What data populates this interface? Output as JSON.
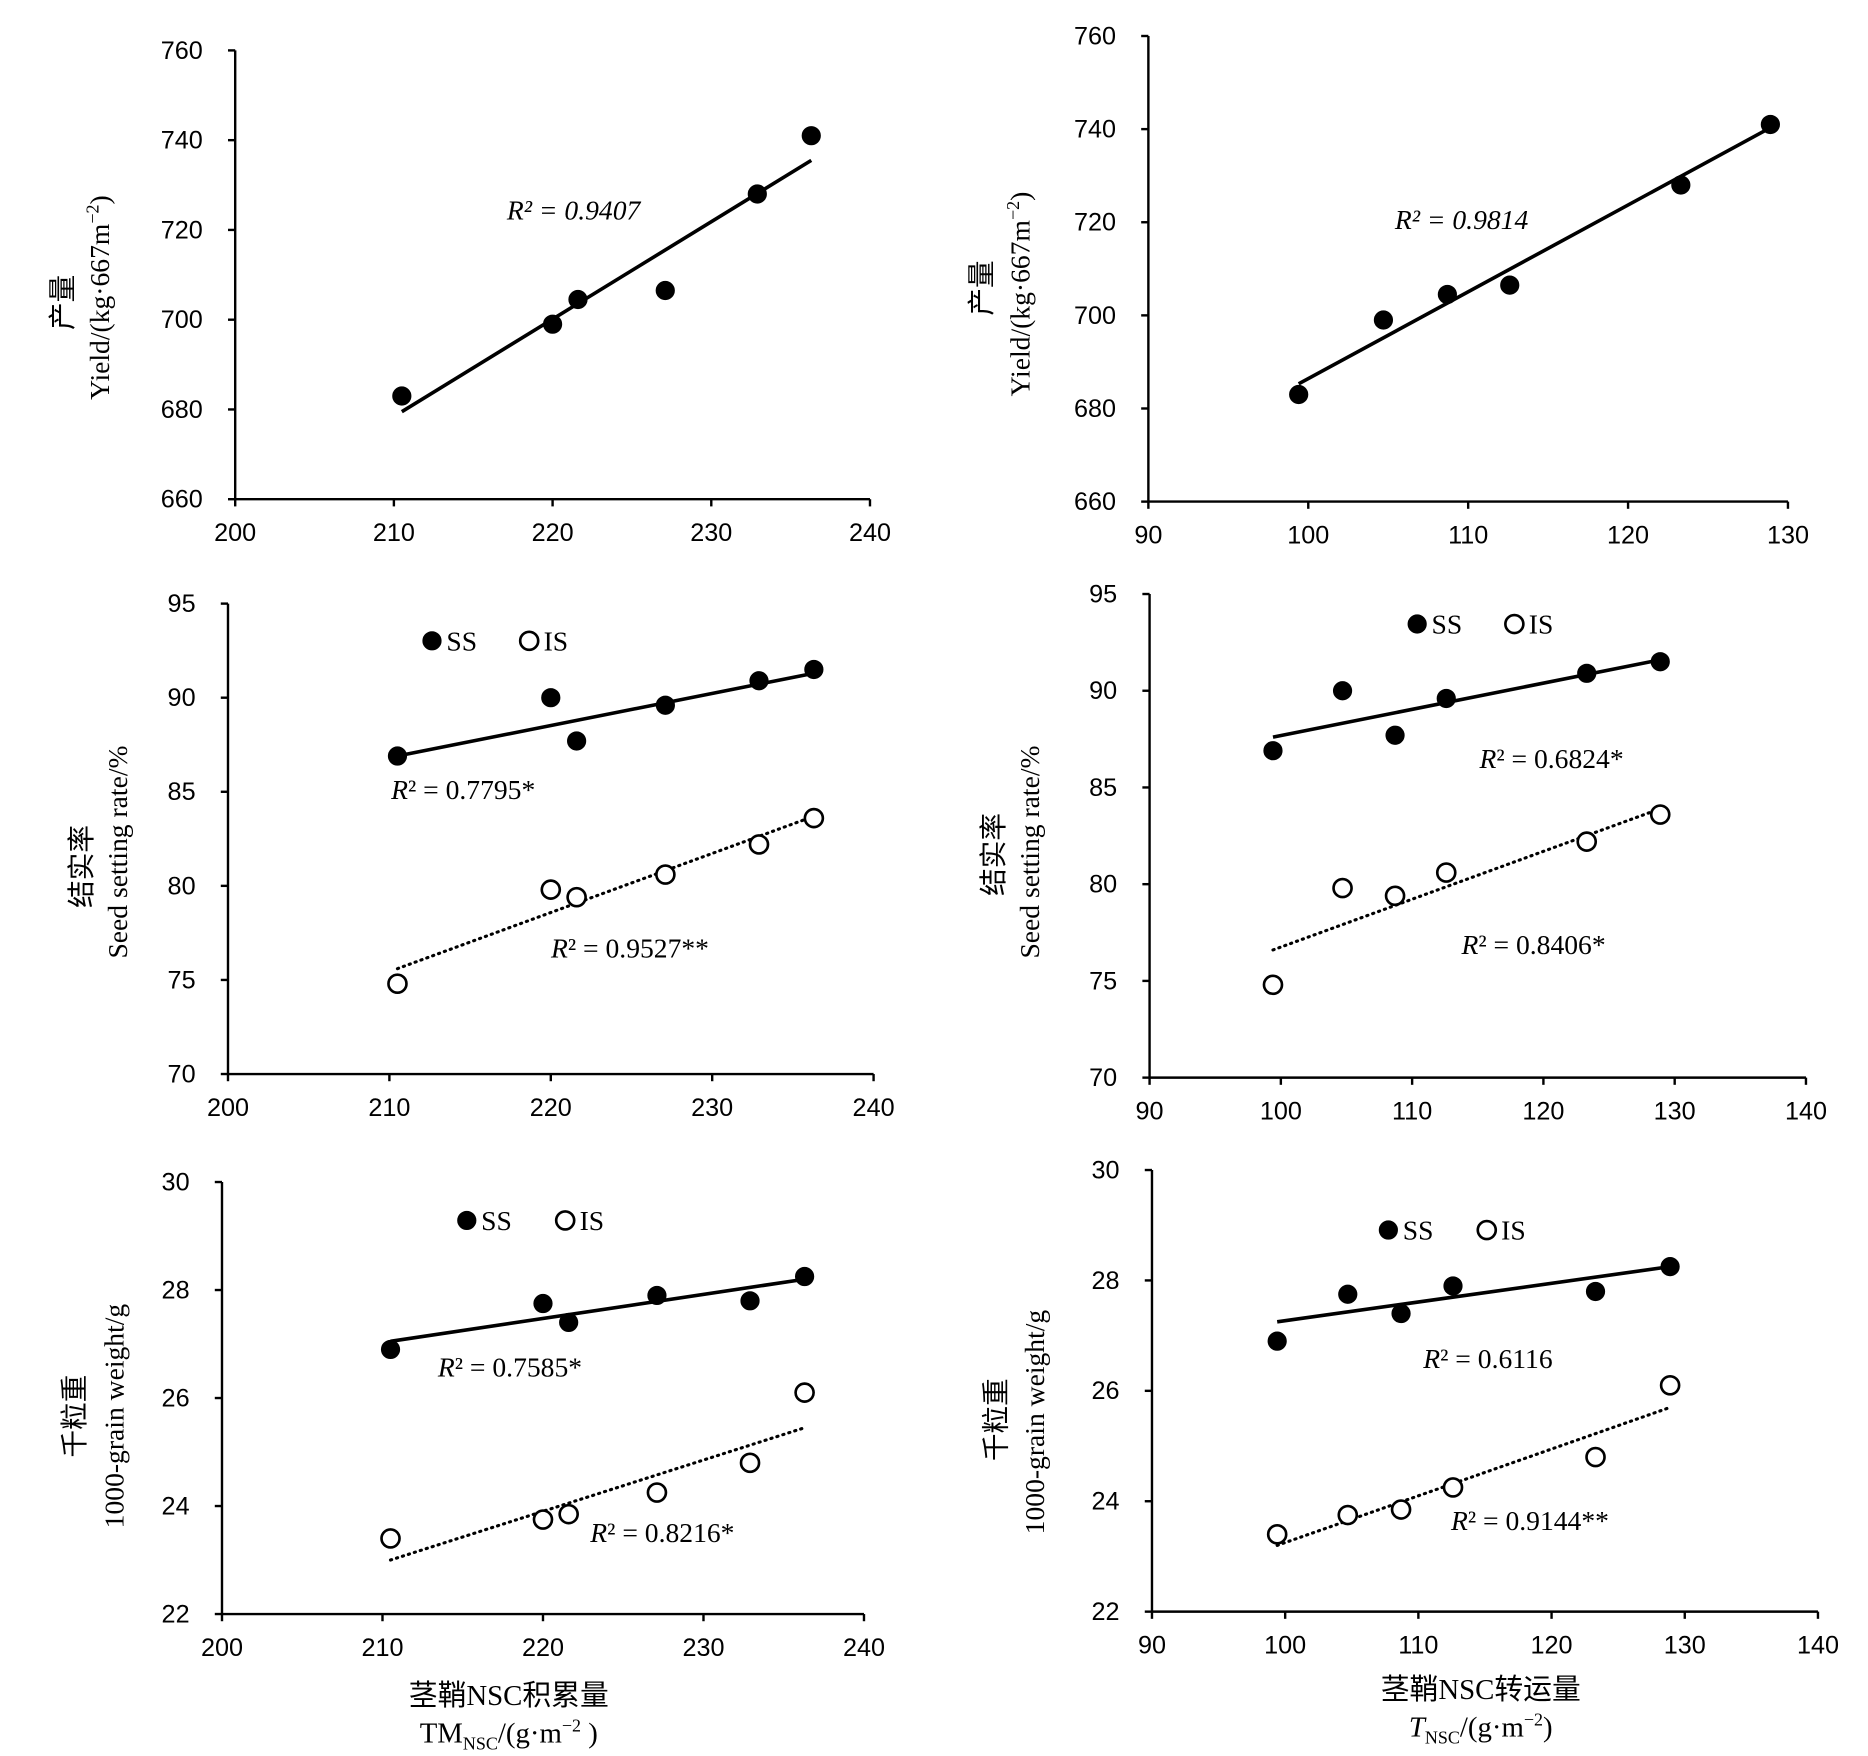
{
  "chart_data": [
    {
      "type": "scatter",
      "xlim": [
        200,
        240
      ],
      "xticks": [
        200,
        210,
        220,
        230,
        240
      ],
      "ylim": [
        660,
        760
      ],
      "yticks": [
        660,
        680,
        700,
        720,
        740,
        760
      ],
      "ylabel": {
        "cn": "产量",
        "en": "Yield/(kg·667m",
        "en_sup": "−2",
        "en_tail": ")"
      },
      "series": [
        {
          "marker": "filled",
          "x": [
            210.5,
            220.0,
            221.6,
            227.1,
            232.9,
            236.3
          ],
          "y": [
            683.0,
            699.0,
            704.5,
            706.5,
            728.0,
            741.0
          ],
          "trendline": {
            "style": "solid",
            "x": [
              210.5,
              236.3
            ],
            "y": [
              679.5,
              735.5
            ]
          },
          "r2_label": "R² = 0.9407"
        }
      ]
    },
    {
      "type": "scatter",
      "xlim": [
        90,
        130
      ],
      "xticks": [
        90,
        100,
        110,
        120,
        130
      ],
      "ylim": [
        660,
        760
      ],
      "yticks": [
        660,
        680,
        700,
        720,
        740,
        760
      ],
      "ylabel": {
        "cn": "产量",
        "en": "Yield/(kg·667m",
        "en_sup": "−2",
        "en_tail": ")"
      },
      "series": [
        {
          "marker": "filled",
          "x": [
            99.4,
            104.7,
            108.7,
            112.6,
            123.3,
            128.9
          ],
          "y": [
            683.0,
            699.0,
            704.5,
            706.5,
            728.0,
            741.0
          ],
          "trendline": {
            "style": "solid",
            "x": [
              99.4,
              128.9
            ],
            "y": [
              685.3,
              740.3
            ]
          },
          "r2_label": "R² = 0.9814"
        }
      ]
    },
    {
      "type": "scatter",
      "xlim": [
        200,
        240
      ],
      "xticks": [
        200,
        210,
        220,
        230,
        240
      ],
      "ylim": [
        70,
        95
      ],
      "yticks": [
        70,
        75,
        80,
        85,
        90,
        95
      ],
      "ylabel": {
        "cn": "结实率",
        "en": "Seed setting rate/%"
      },
      "legend": "top-left",
      "series": [
        {
          "name": "SS",
          "marker": "filled",
          "x": [
            210.5,
            220.0,
            221.6,
            227.1,
            232.9,
            236.3
          ],
          "y": [
            86.9,
            90.0,
            87.7,
            89.6,
            90.9,
            91.5
          ],
          "trendline": {
            "style": "solid",
            "x": [
              210.5,
              236.3
            ],
            "y": [
              86.9,
              91.3
            ]
          },
          "r2_label": "R² = 0.7795*"
        },
        {
          "name": "IS",
          "marker": "open",
          "x": [
            210.5,
            220.0,
            221.6,
            227.1,
            232.9,
            236.3
          ],
          "y": [
            74.8,
            79.8,
            79.4,
            80.6,
            82.2,
            83.6
          ],
          "trendline": {
            "style": "dotted",
            "x": [
              210.5,
              236.3
            ],
            "y": [
              75.6,
              83.7
            ]
          },
          "r2_label": "R² = 0.9527**"
        }
      ]
    },
    {
      "type": "scatter",
      "xlim": [
        90,
        140
      ],
      "xticks": [
        90,
        100,
        110,
        120,
        130,
        140
      ],
      "ylim": [
        70,
        95
      ],
      "yticks": [
        70,
        75,
        80,
        85,
        90,
        95
      ],
      "ylabel": {
        "cn": "结实率",
        "en": "Seed setting rate/%"
      },
      "legend": "top-left",
      "series": [
        {
          "name": "SS",
          "marker": "filled",
          "x": [
            99.4,
            104.7,
            108.7,
            112.6,
            123.3,
            128.9
          ],
          "y": [
            86.9,
            90.0,
            87.7,
            89.6,
            90.9,
            91.5
          ],
          "trendline": {
            "style": "solid",
            "x": [
              99.4,
              128.9
            ],
            "y": [
              87.6,
              91.6
            ]
          },
          "r2_label": "R² = 0.6824*"
        },
        {
          "name": "IS",
          "marker": "open",
          "x": [
            99.4,
            104.7,
            108.7,
            112.6,
            123.3,
            128.9
          ],
          "y": [
            74.8,
            79.8,
            79.4,
            80.6,
            82.2,
            83.6
          ],
          "trendline": {
            "style": "dotted",
            "x": [
              99.4,
              128.9
            ],
            "y": [
              76.6,
              83.9
            ]
          },
          "r2_label": "R² = 0.8406*"
        }
      ]
    },
    {
      "type": "scatter",
      "xlim": [
        200,
        240
      ],
      "xticks": [
        200,
        210,
        220,
        230,
        240
      ],
      "ylim": [
        22,
        30
      ],
      "yticks": [
        22,
        24,
        26,
        28,
        30
      ],
      "ylabel": {
        "cn": "千粒重",
        "en": "1000-grain weight/g"
      },
      "xlabel": {
        "cn": "茎鞘NSC积累量",
        "main": "TM",
        "sub": "NSC",
        "mid": "/(g·m",
        "sup": "−2",
        "tail": " )"
      },
      "legend": "top-left",
      "series": [
        {
          "name": "SS",
          "marker": "filled",
          "x": [
            210.5,
            220.0,
            221.6,
            227.1,
            232.9,
            236.3
          ],
          "y": [
            26.9,
            27.75,
            27.4,
            27.9,
            27.8,
            28.25
          ],
          "trendline": {
            "style": "solid",
            "x": [
              210.5,
              236.3
            ],
            "y": [
              27.05,
              28.2
            ]
          },
          "r2_label": "R² = 0.7585*"
        },
        {
          "name": "IS",
          "marker": "open",
          "x": [
            210.5,
            220.0,
            221.6,
            227.1,
            232.9,
            236.3
          ],
          "y": [
            23.4,
            23.75,
            23.85,
            24.25,
            24.8,
            26.1
          ],
          "trendline": {
            "style": "dotted",
            "x": [
              210.5,
              236.3
            ],
            "y": [
              23.0,
              25.45
            ]
          },
          "r2_label": "R² = 0.8216*"
        }
      ]
    },
    {
      "type": "scatter",
      "xlim": [
        90,
        140
      ],
      "xticks": [
        90,
        100,
        110,
        120,
        130,
        140
      ],
      "ylim": [
        22,
        30
      ],
      "yticks": [
        22,
        24,
        26,
        28,
        30
      ],
      "ylabel": {
        "cn": "千粒重",
        "en": "1000-grain weight/g"
      },
      "xlabel": {
        "cn": "茎鞘NSC转运量",
        "main": "T",
        "sub": "NSC",
        "mid": "/(g·m",
        "sup": "−2",
        "tail": ")"
      },
      "legend": "top-left",
      "series": [
        {
          "name": "SS",
          "marker": "filled",
          "x": [
            99.4,
            104.7,
            108.7,
            112.6,
            123.3,
            128.9
          ],
          "y": [
            26.9,
            27.75,
            27.4,
            27.9,
            27.8,
            28.25
          ],
          "trendline": {
            "style": "solid",
            "x": [
              99.4,
              128.9
            ],
            "y": [
              27.25,
              28.25
            ]
          },
          "r2_label": "R² = 0.6116"
        },
        {
          "name": "IS",
          "marker": "open",
          "x": [
            99.4,
            104.7,
            108.7,
            112.6,
            123.3,
            128.9
          ],
          "y": [
            23.4,
            23.75,
            23.85,
            24.25,
            24.8,
            26.1
          ],
          "trendline": {
            "style": "dotted",
            "x": [
              99.4,
              128.9
            ],
            "y": [
              23.2,
              25.7
            ]
          },
          "r2_label": "R² = 0.9144**"
        }
      ]
    }
  ]
}
